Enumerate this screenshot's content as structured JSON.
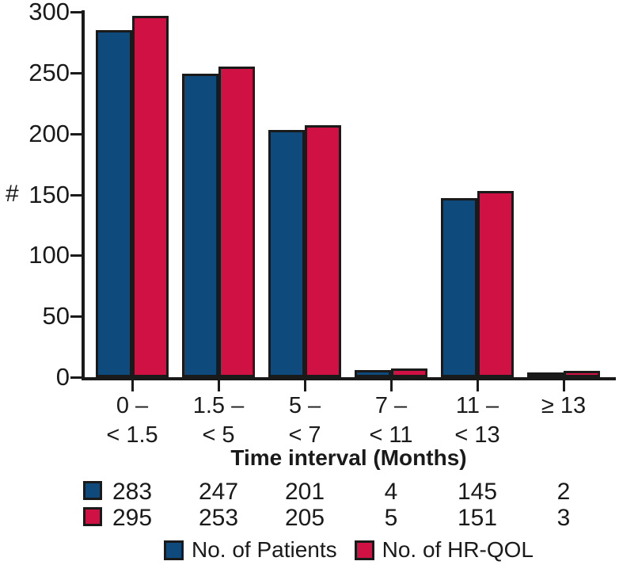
{
  "chart_data": {
    "type": "bar",
    "title": "",
    "xlabel": "Time interval (Months)",
    "ylabel": "#",
    "ylim": [
      0,
      300
    ],
    "yticks": [
      0,
      50,
      100,
      150,
      200,
      250,
      300
    ],
    "grid": false,
    "legend_position": "bottom",
    "categories": [
      [
        "0 –",
        "< 1.5"
      ],
      [
        "1.5 –",
        "< 5"
      ],
      [
        "5 –",
        "< 7"
      ],
      [
        "7 –",
        "< 11"
      ],
      [
        "11 –",
        "< 13"
      ],
      [
        "≥ 13",
        ""
      ]
    ],
    "series": [
      {
        "name": "No. of Patients",
        "color": "#0e4a7c",
        "values": [
          283,
          247,
          201,
          4,
          145,
          2
        ]
      },
      {
        "name": "No. of HR-QOL",
        "color": "#d01144",
        "values": [
          295,
          253,
          205,
          5,
          151,
          3
        ]
      }
    ]
  },
  "colors": {
    "axis": "#1a1a1a",
    "bar_outline": "#1a1a1a",
    "text": "#1a1a1a",
    "background": "#ffffff"
  }
}
